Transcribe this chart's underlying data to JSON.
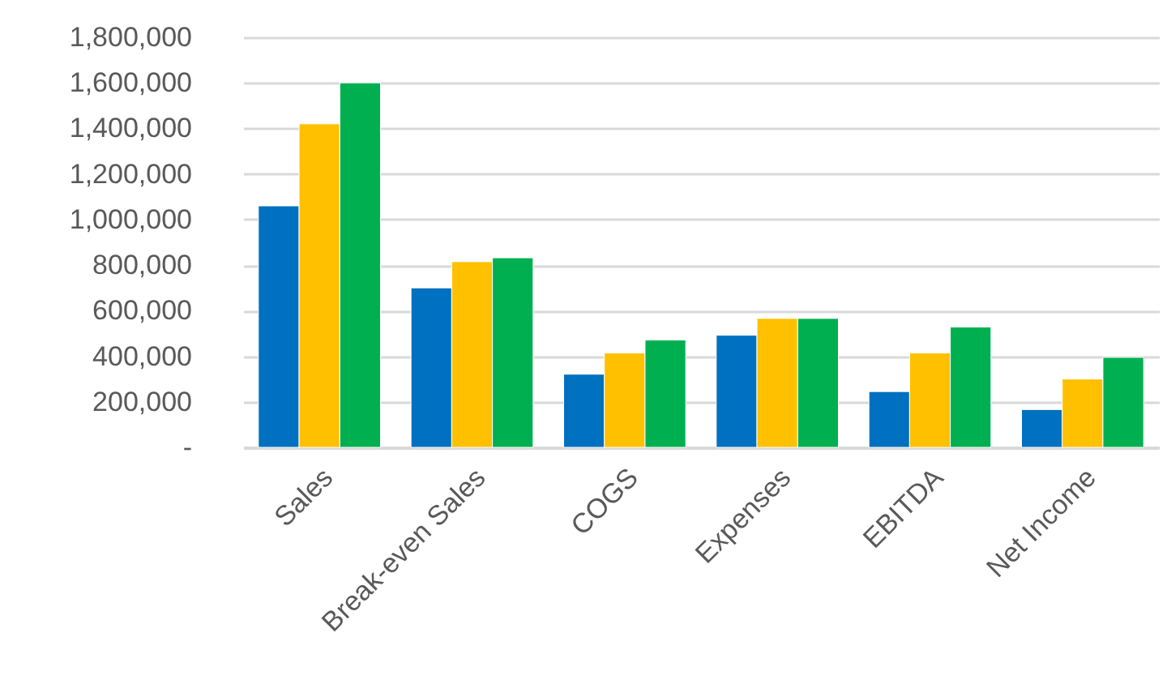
{
  "chart_data": {
    "type": "bar",
    "categories": [
      "Sales",
      "Break-even Sales",
      "COGS",
      "Expenses",
      "EBITDA",
      "Net Income"
    ],
    "series": [
      {
        "color": "#0070c0",
        "values": [
          1060000,
          700000,
          321000,
          492000,
          245000,
          166000
        ]
      },
      {
        "color": "#ffc000",
        "values": [
          1420000,
          815000,
          414000,
          566000,
          414000,
          300000
        ]
      },
      {
        "color": "#00b050",
        "values": [
          1600000,
          832000,
          471000,
          566000,
          528000,
          395000
        ]
      }
    ],
    "ylim": [
      0,
      1800000
    ],
    "yticks": [
      {
        "value": 0,
        "label": "-"
      },
      {
        "value": 200000,
        "label": "200,000"
      },
      {
        "value": 400000,
        "label": "400,000"
      },
      {
        "value": 600000,
        "label": "600,000"
      },
      {
        "value": 800000,
        "label": "800,000"
      },
      {
        "value": 1000000,
        "label": "1,000,000"
      },
      {
        "value": 1200000,
        "label": "1,200,000"
      },
      {
        "value": 1400000,
        "label": "1,400,000"
      },
      {
        "value": 1600000,
        "label": "1,600,000"
      },
      {
        "value": 1800000,
        "label": "1,800,000"
      }
    ],
    "grid": true,
    "legend": false
  }
}
